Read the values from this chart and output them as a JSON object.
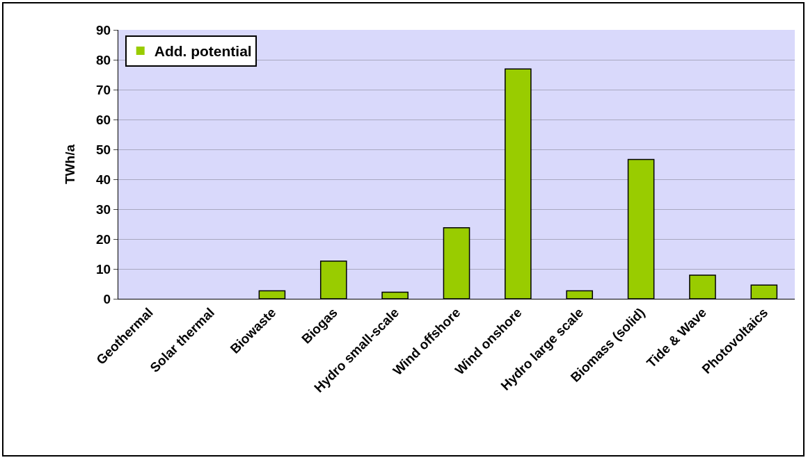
{
  "chart_data": {
    "type": "bar",
    "ylabel": "TWh/a",
    "categories": [
      "Geothermal",
      "Solar thermal",
      "Biowaste",
      "Biogas",
      "Hydro small-scale",
      "Wind offshore",
      "Wind onshore",
      "Hydro large scale",
      "Biomass (solid)",
      "Tide & Wave",
      "Photovoltaics"
    ],
    "series": [
      {
        "name": "Add. potential",
        "color": "#99cc00",
        "values": [
          0,
          0,
          2.7,
          12.6,
          2.2,
          23.8,
          76.9,
          2.7,
          46.6,
          7.9,
          4.6
        ]
      }
    ],
    "ylim": [
      0,
      90
    ],
    "yticks": [
      0,
      10,
      20,
      30,
      40,
      50,
      60,
      70,
      80,
      90
    ],
    "grid": "y",
    "legend": "top left"
  }
}
